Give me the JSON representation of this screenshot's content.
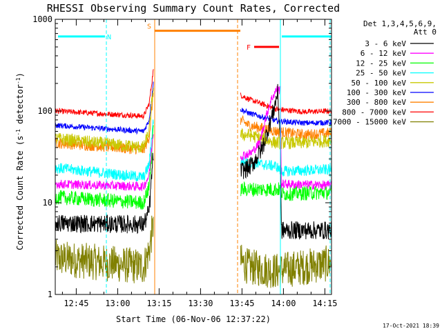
{
  "chart_data": {
    "type": "line",
    "title": "RHESSI Observing Summary Count Rates, Corrected",
    "xlabel": "Start Time (06-Nov-06 12:37:22)",
    "ylabel": "Corrected Count Rate (s",
    "ylabel_sup1": "-1",
    "ylabel_mid": " detector",
    "ylabel_sup2": "-1",
    "ylabel_end": ")",
    "x_unit": "minutes after 12:37:22",
    "xlim": [
      0,
      100
    ],
    "ylim": [
      1,
      1000
    ],
    "y_scale": "log",
    "x_ticks": [
      {
        "label": "12:45",
        "value": 7.6
      },
      {
        "label": "13:00",
        "value": 22.6
      },
      {
        "label": "13:15",
        "value": 37.6
      },
      {
        "label": "13:30",
        "value": 52.6
      },
      {
        "label": "13:45",
        "value": 67.6
      },
      {
        "label": "14:00",
        "value": 82.6
      },
      {
        "label": "14:15",
        "value": 97.6
      }
    ],
    "x_minor_step": 5,
    "y_ticks": [
      {
        "label": "1",
        "value": 1
      },
      {
        "label": "10",
        "value": 10
      },
      {
        "label": "100",
        "value": 100
      },
      {
        "label": "1000",
        "value": 1000
      }
    ],
    "legend": {
      "placement": "right",
      "header1": "Det 1,3,4,5,6,9,",
      "header2": "Att 0"
    },
    "series": [
      {
        "name": "3 - 6 keV",
        "color": "#000000",
        "noise": 0.1,
        "x": [
          0,
          32,
          34,
          35.5,
          67,
          70,
          72,
          75,
          79,
          80.5,
          81.5,
          81.8,
          100
        ],
        "y": [
          6,
          5.8,
          8,
          35,
          22,
          24,
          28,
          40,
          100,
          160,
          50,
          5,
          5
        ]
      },
      {
        "name": "6 - 12 keV",
        "color": "#ff00ff",
        "noise": 0.05,
        "x": [
          0,
          32,
          34,
          35.5,
          67,
          71,
          74,
          76,
          78,
          80,
          81.5,
          81.8,
          100
        ],
        "y": [
          16,
          15,
          20,
          60,
          32,
          35,
          45,
          80,
          130,
          170,
          170,
          16,
          15.5
        ]
      },
      {
        "name": "12 - 25 keV",
        "color": "#00ff00",
        "noise": 0.08,
        "x": [
          0,
          32,
          34,
          35.5,
          67,
          80,
          81.8,
          82,
          100
        ],
        "y": [
          11.5,
          10,
          15,
          60,
          14,
          14,
          14,
          12.5,
          13
        ]
      },
      {
        "name": "25 - 50 keV",
        "color": "#00ffff",
        "noise": 0.06,
        "x": [
          0,
          32,
          34,
          35.5,
          67,
          80,
          81.8,
          100
        ],
        "y": [
          24,
          19,
          26,
          80,
          28,
          25,
          22,
          23
        ]
      },
      {
        "name": "50 - 100 keV",
        "color": "#c8c800",
        "noise": 0.07,
        "x": [
          0,
          32,
          34,
          35.5,
          67,
          70,
          80,
          90,
          100
        ],
        "y": [
          50,
          40,
          60,
          180,
          55,
          55,
          45,
          45,
          48
        ]
      },
      {
        "name": "100 - 300 keV",
        "color": "#0000ff",
        "noise": 0.03,
        "x": [
          0,
          32,
          34,
          35.5,
          67,
          70,
          80,
          90,
          100
        ],
        "y": [
          70,
          60,
          80,
          200,
          105,
          95,
          78,
          74,
          75
        ]
      },
      {
        "name": "300 - 800 keV",
        "color": "#ff8000",
        "noise": 0.06,
        "x": [
          0,
          32,
          34,
          35.5,
          67,
          70,
          80,
          90,
          100
        ],
        "y": [
          45,
          38,
          52,
          160,
          80,
          70,
          60,
          55,
          58
        ]
      },
      {
        "name": "800 - 7000 keV",
        "color": "#ff0000",
        "noise": 0.03,
        "x": [
          0,
          32,
          34,
          35.5,
          67,
          70,
          80,
          90,
          100
        ],
        "y": [
          100,
          88,
          120,
          280,
          150,
          135,
          105,
          98,
          100
        ]
      },
      {
        "name": "7000 - 15000 keV",
        "color": "#808000",
        "noise": 0.2,
        "x": [
          0,
          32,
          34,
          35.5,
          67,
          70,
          80,
          90,
          100
        ],
        "y": [
          2.5,
          2,
          3,
          6,
          2.3,
          2,
          1.8,
          2,
          2.2
        ]
      }
    ],
    "gaps": [
      [
        35.6,
        67
      ]
    ],
    "annotations": [
      {
        "label": "N",
        "color": "#00ffff",
        "bar": [
          1,
          18
        ],
        "level": 650
      },
      {
        "label": "S",
        "color": "#ff8000",
        "bar": [
          36,
          67
        ],
        "level": 750
      },
      {
        "label": "F",
        "color": "#ff0000",
        "bar": [
          72,
          81
        ],
        "level": 500
      },
      {
        "label": "",
        "color": "#00ffff",
        "bar": [
          82,
          100
        ],
        "level": 650
      }
    ],
    "vlines": [
      {
        "x": 0,
        "color": "#00ffff",
        "dash": false
      },
      {
        "x": 18.5,
        "color": "#00ffff",
        "dash": true
      },
      {
        "x": 36,
        "color": "#ff8000",
        "dash": false
      },
      {
        "x": 66,
        "color": "#ff8000",
        "dash": true
      },
      {
        "x": 81.5,
        "color": "#00ffff",
        "dash": false
      },
      {
        "x": 99.5,
        "color": "#00ffff",
        "dash": true
      }
    ],
    "grid": false
  },
  "footer_date": "17-Oct-2021 18:39"
}
